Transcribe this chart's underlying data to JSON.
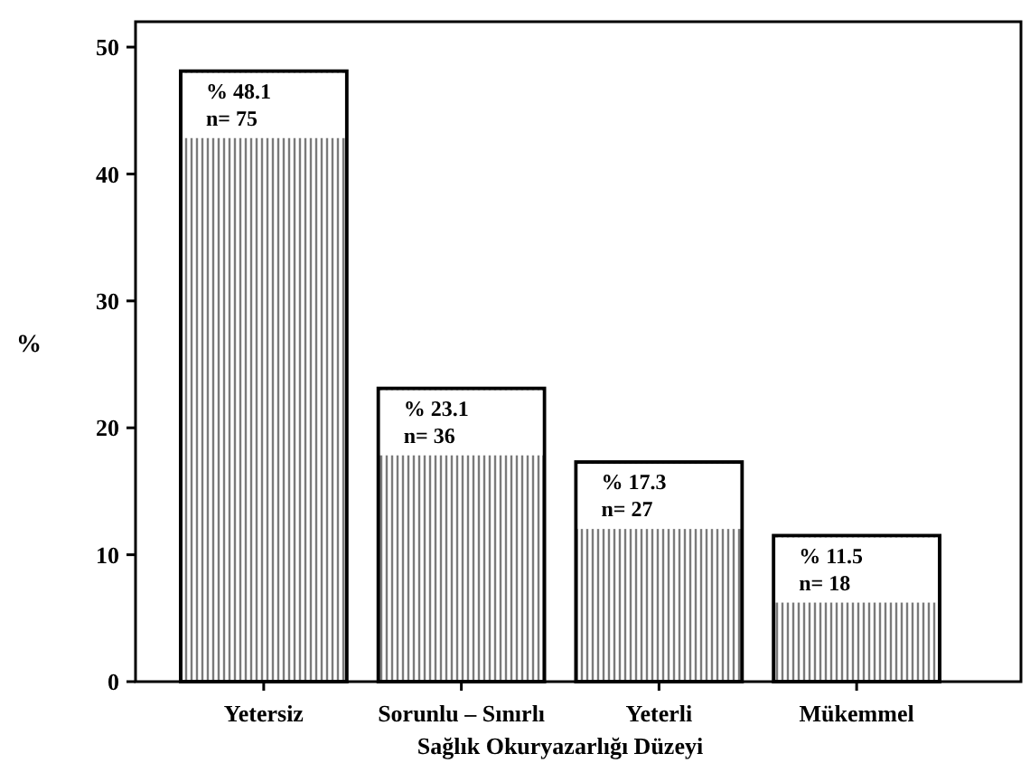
{
  "chart_data": {
    "type": "bar",
    "xlabel": "Sağlık Okuryazarlığı Düzeyi",
    "ylabel": "%",
    "categories": [
      "Yetersiz",
      "Sorunlu – Sınırlı",
      "Yeterli",
      "Mükemmel"
    ],
    "values": [
      48.1,
      23.1,
      17.3,
      11.5
    ],
    "value_labels": [
      "% 48.1\nn= 75",
      "% 23.1\nn= 36",
      "% 17.3\nn= 27",
      "% 11.5\nn= 18"
    ],
    "color": "#000000",
    "ylim": [
      0,
      52
    ],
    "yticks": [
      0,
      10,
      20,
      30,
      40,
      50
    ],
    "grid": false
  }
}
